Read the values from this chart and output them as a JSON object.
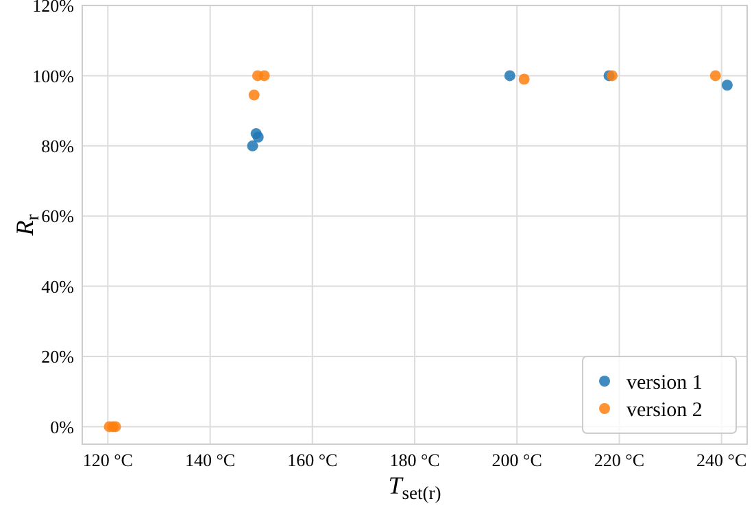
{
  "chart_data": {
    "type": "scatter",
    "xlabel": "T$_{set(r)}$",
    "ylabel": "R$_{r}$",
    "xlim": [
      115,
      245
    ],
    "xticks": [
      {
        "value": 120,
        "label": "120 °C"
      },
      {
        "value": 140,
        "label": "140 °C"
      },
      {
        "value": 160,
        "label": "160 °C"
      },
      {
        "value": 180,
        "label": "180 °C"
      },
      {
        "value": 200,
        "label": "200 °C"
      },
      {
        "value": 220,
        "label": "220 °C"
      },
      {
        "value": 240,
        "label": "240 °C"
      }
    ],
    "ylim": [
      -5,
      120
    ],
    "yticks": [
      {
        "value": 0,
        "label": "0%"
      },
      {
        "value": 20,
        "label": "20%"
      },
      {
        "value": 40,
        "label": "40%"
      },
      {
        "value": 60,
        "label": "60%"
      },
      {
        "value": 80,
        "label": "80%"
      },
      {
        "value": 100,
        "label": "100%"
      },
      {
        "value": 120,
        "label": "120%"
      }
    ],
    "grid": true,
    "legend": "bottom right",
    "marker": "circle",
    "series": [
      {
        "name": "version 1",
        "color": "#1f77b4",
        "x": [
          148.3,
          149,
          149.4,
          198.6,
          218,
          241.1
        ],
        "values": [
          80,
          83.5,
          82.5,
          100,
          100,
          97.3
        ]
      },
      {
        "name": "version 2",
        "color": "#ff7f0e",
        "x": [
          120.3,
          121,
          121.5,
          148.6,
          149.3,
          150.6,
          201.4,
          218.6,
          238.8
        ],
        "values": [
          0,
          0,
          0,
          94.5,
          100,
          100,
          99,
          100,
          100
        ]
      }
    ]
  }
}
